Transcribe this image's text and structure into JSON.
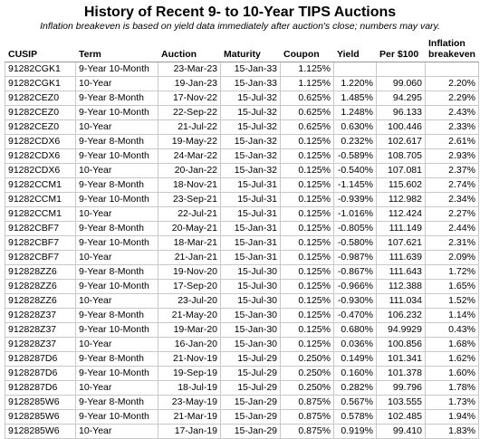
{
  "title": "History of Recent 9- to 10-Year TIPS Auctions",
  "subtitle": "Inflation breakeven is based on yield data immediately after auction's close; numbers may vary.",
  "columns": [
    "CUSIP",
    "Term",
    "Auction",
    "Maturity",
    "Coupon",
    "Yield",
    "Per $100",
    "Inflation breakeven"
  ],
  "rows": [
    [
      "91282CGK1",
      "9-Year 10-Month",
      "23-Mar-23",
      "15-Jan-33",
      "1.125%",
      "",
      "",
      ""
    ],
    [
      "91282CGK1",
      "10-Year",
      "19-Jan-23",
      "15-Jan-33",
      "1.125%",
      "1.220%",
      "99.060",
      "2.20%"
    ],
    [
      "91282CEZ0",
      "9-Year 8-Month",
      "17-Nov-22",
      "15-Jul-32",
      "0.625%",
      "1.485%",
      "94.295",
      "2.29%"
    ],
    [
      "91282CEZ0",
      "9-Year 10-Month",
      "22-Sep-22",
      "15-Jul-32",
      "0.625%",
      "1.248%",
      "96.133",
      "2.43%"
    ],
    [
      "91282CEZ0",
      "10-Year",
      "21-Jul-22",
      "15-Jul-32",
      "0.625%",
      "0.630%",
      "100.446",
      "2.33%"
    ],
    [
      "91282CDX6",
      "9-Year 8-Month",
      "19-May-22",
      "15-Jan-32",
      "0.125%",
      "0.232%",
      "102.617",
      "2.61%"
    ],
    [
      "91282CDX6",
      "9-Year 10-Month",
      "24-Mar-22",
      "15-Jan-32",
      "0.125%",
      "-0.589%",
      "108.705",
      "2.93%"
    ],
    [
      "91282CDX6",
      "10-Year",
      "20-Jan-22",
      "15-Jan-32",
      "0.125%",
      "-0.540%",
      "107.081",
      "2.37%"
    ],
    [
      "91282CCM1",
      "9-Year 8-Month",
      "18-Nov-21",
      "15-Jul-31",
      "0.125%",
      "-1.145%",
      "115.602",
      "2.74%"
    ],
    [
      "91282CCM1",
      "9-Year 10-Month",
      "23-Sep-21",
      "15-Jul-31",
      "0.125%",
      "-0.939%",
      "112.982",
      "2.34%"
    ],
    [
      "91282CCM1",
      "10-Year",
      "22-Jul-21",
      "15-Jul-31",
      "0.125%",
      "-1.016%",
      "112.424",
      "2.27%"
    ],
    [
      "91282CBF7",
      "9-Year 8-Month",
      "20-May-21",
      "15-Jan-31",
      "0.125%",
      "-0.805%",
      "111.149",
      "2.44%"
    ],
    [
      "91282CBF7",
      "9-Year 10-Month",
      "18-Mar-21",
      "15-Jan-31",
      "0.125%",
      "-0.580%",
      "107.621",
      "2.31%"
    ],
    [
      "91282CBF7",
      "10-Year",
      "21-Jan-21",
      "15-Jan-31",
      "0.125%",
      "-0.987%",
      "111.639",
      "2.09%"
    ],
    [
      "912828ZZ6",
      "9-Year 8-Month",
      "19-Nov-20",
      "15-Jul-30",
      "0.125%",
      "-0.867%",
      "111.643",
      "1.72%"
    ],
    [
      "912828ZZ6",
      "9-Year 10-Month",
      "17-Sep-20",
      "15-Jul-30",
      "0.125%",
      "-0.966%",
      "112.388",
      "1.65%"
    ],
    [
      "912828ZZ6",
      "10-Year",
      "23-Jul-20",
      "15-Jul-30",
      "0.125%",
      "-0.930%",
      "111.034",
      "1.52%"
    ],
    [
      "912828Z37",
      "9-Year 8-Month",
      "21-May-20",
      "15-Jan-30",
      "0.125%",
      "-0.470%",
      "106.232",
      "1.14%"
    ],
    [
      "912828Z37",
      "9-Year 10-Month",
      "19-Mar-20",
      "15-Jan-30",
      "0.125%",
      "0.680%",
      "94.9929",
      "0.43%"
    ],
    [
      "912828Z37",
      "10-Year",
      "16-Jan-20",
      "15-Jan-30",
      "0.125%",
      "0.036%",
      "100.856",
      "1.68%"
    ],
    [
      "9128287D6",
      "9-Year 8-Month",
      "21-Nov-19",
      "15-Jul-29",
      "0.250%",
      "0.149%",
      "101.341",
      "1.62%"
    ],
    [
      "9128287D6",
      "9-Year 10-Month",
      "19-Sep-19",
      "15-Jul-29",
      "0.250%",
      "0.160%",
      "101.378",
      "1.60%"
    ],
    [
      "9128287D6",
      "10-Year",
      "18-Jul-19",
      "15-Jul-29",
      "0.250%",
      "0.282%",
      "99.796",
      "1.78%"
    ],
    [
      "9128285W6",
      "9-Year 8-Month",
      "23-May-19",
      "15-Jan-29",
      "0.875%",
      "0.567%",
      "103.555",
      "1.73%"
    ],
    [
      "9128285W6",
      "9-Year 10-Month",
      "21-Mar-19",
      "15-Jan-29",
      "0.875%",
      "0.578%",
      "102.485",
      "1.94%"
    ],
    [
      "9128285W6",
      "10-Year",
      "17-Jan-19",
      "15-Jan-29",
      "0.875%",
      "0.919%",
      "99.410",
      "1.83%"
    ]
  ]
}
